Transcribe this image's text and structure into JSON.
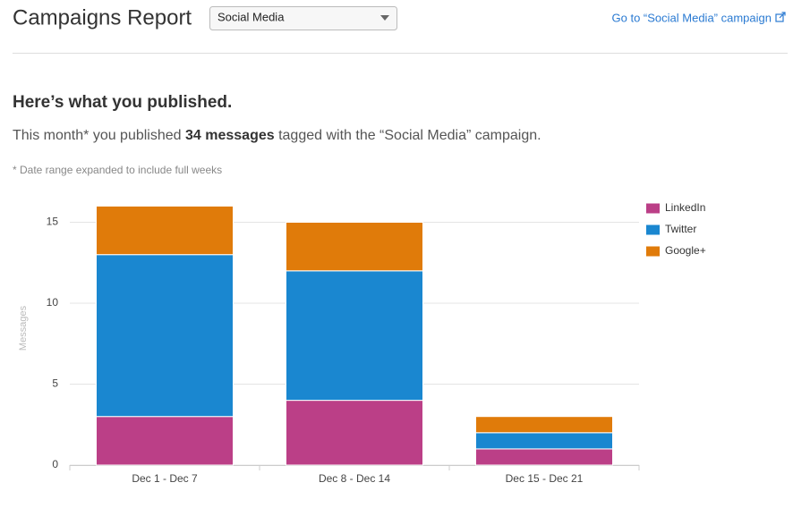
{
  "header": {
    "title": "Campaigns Report",
    "selected_campaign": "Social Media",
    "link": "Go to “Social Media” campaign"
  },
  "summary": {
    "heading": "Here’s what you published.",
    "lead": "This month* you published ",
    "count": "34 messages",
    "tail": " tagged with the “Social Media” campaign.",
    "footnote": "* Date range expanded to include full weeks"
  },
  "chart_data": {
    "type": "stacked_bar",
    "y_label": "Messages",
    "categories": [
      "Dec 1 - Dec 7",
      "Dec 8 - Dec 14",
      "Dec 15 - Dec 21"
    ],
    "series": [
      {
        "name": "LinkedIn",
        "color": "#bb3f87",
        "values": [
          3,
          4,
          1
        ]
      },
      {
        "name": "Twitter",
        "color": "#1a87d0",
        "values": [
          10,
          8,
          1
        ]
      },
      {
        "name": "Google+",
        "color": "#e07b0a",
        "values": [
          3,
          3,
          1
        ]
      }
    ],
    "ylim": [
      0,
      17
    ],
    "yticks": [
      0,
      5,
      10,
      15
    ],
    "grid": true,
    "legend": "right"
  }
}
